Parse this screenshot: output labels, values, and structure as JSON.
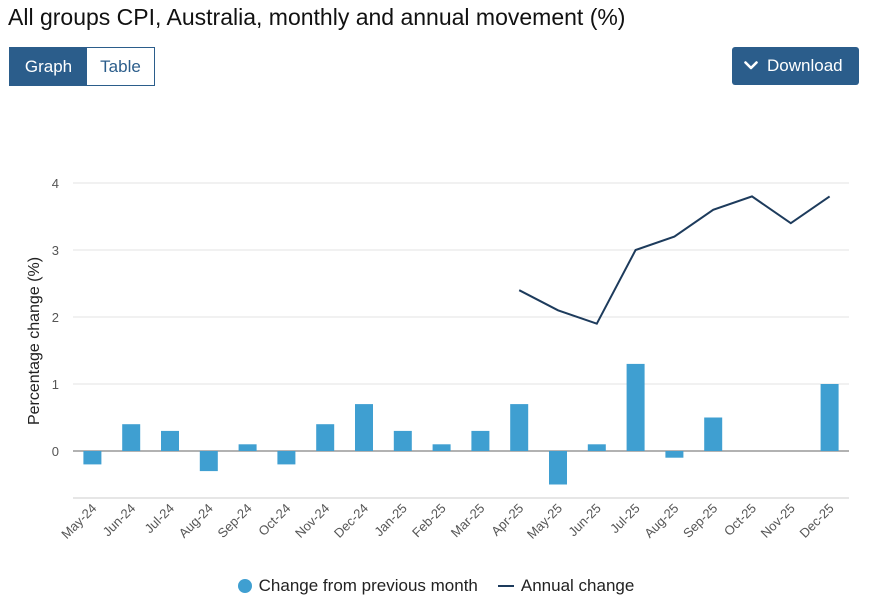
{
  "page": {
    "title": "All groups CPI, Australia, monthly and annual movement (%)",
    "tabs": [
      {
        "label": "Graph",
        "active": true
      },
      {
        "label": "Table",
        "active": false
      }
    ],
    "download_label": "Download",
    "download_icon": "chevron-down-icon"
  },
  "colors": {
    "accent": "#2b5d8b",
    "bar": "#3f9fd1",
    "line": "#1d3b5c",
    "grid": "#e3e3e3",
    "zero": "#999999"
  },
  "chart_data": {
    "type": "bar+line",
    "title": "All groups CPI, Australia, monthly and annual movement (%)",
    "xlabel": "",
    "ylabel": "Percentage change (%)",
    "ylim": [
      -0.7,
      4
    ],
    "yticks": [
      0,
      1,
      2,
      3,
      4
    ],
    "grid": true,
    "legend_position": "bottom",
    "categories": [
      "May-24",
      "Jun-24",
      "Jul-24",
      "Aug-24",
      "Sep-24",
      "Oct-24",
      "Nov-24",
      "Dec-24",
      "Jan-25",
      "Feb-25",
      "Mar-25",
      "Apr-25",
      "May-25",
      "Jun-25",
      "Jul-25",
      "Aug-25",
      "Sep-25",
      "Oct-25",
      "Nov-25",
      "Dec-25"
    ],
    "series": [
      {
        "name": "Change from previous month",
        "type": "bar",
        "values": [
          -0.2,
          0.4,
          0.3,
          -0.3,
          0.1,
          -0.2,
          0.4,
          0.7,
          0.3,
          0.1,
          0.3,
          0.7,
          -0.5,
          0.1,
          1.3,
          -0.1,
          0.5,
          0.0,
          0.0,
          1.0
        ]
      },
      {
        "name": "Annual change",
        "type": "line",
        "values": [
          null,
          null,
          null,
          null,
          null,
          null,
          null,
          null,
          null,
          null,
          null,
          2.4,
          2.1,
          1.9,
          3.0,
          3.2,
          3.6,
          3.8,
          3.4,
          3.8
        ]
      }
    ]
  }
}
